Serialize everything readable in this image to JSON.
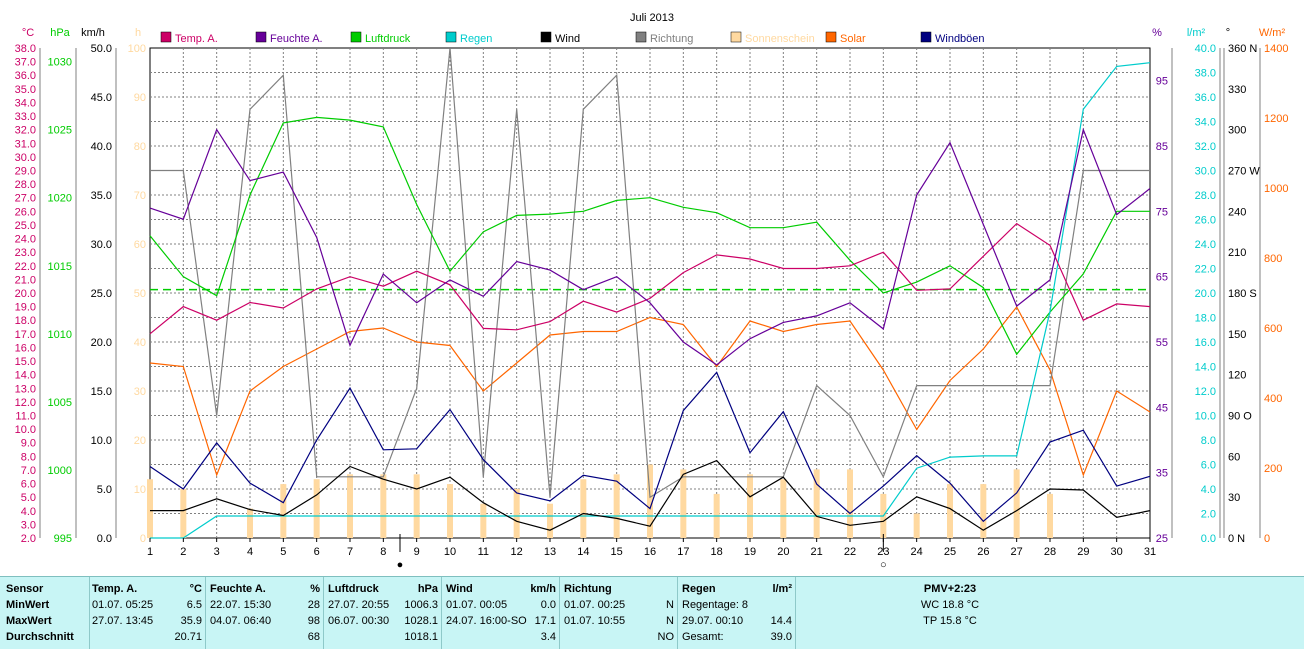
{
  "chart_data": {
    "type": "line",
    "title": "Juli 2013",
    "x": [
      1,
      2,
      3,
      4,
      5,
      6,
      7,
      8,
      9,
      10,
      11,
      12,
      13,
      14,
      15,
      16,
      17,
      18,
      19,
      20,
      21,
      22,
      23,
      24,
      25,
      26,
      27,
      28,
      29,
      30,
      31
    ],
    "x_ticks": [
      "1",
      "2",
      "3",
      "4",
      "5",
      "6",
      "7",
      "8",
      "9",
      "10",
      "11",
      "12",
      "13",
      "14",
      "15",
      "16",
      "17",
      "18",
      "19",
      "20",
      "21",
      "22",
      "23",
      "24",
      "25",
      "26",
      "27",
      "28",
      "29",
      "30",
      "31"
    ],
    "axes": {
      "temp": {
        "unit": "°C",
        "min": 2,
        "max": 38,
        "color": "#cc0066",
        "ticks": [
          "38.0",
          "37.0",
          "36.0",
          "35.0",
          "34.0",
          "33.0",
          "32.0",
          "31.0",
          "30.0",
          "29.0",
          "28.0",
          "27.0",
          "26.0",
          "25.0",
          "24.0",
          "23.0",
          "22.0",
          "21.0",
          "20.0",
          "19.0",
          "18.0",
          "17.0",
          "16.0",
          "15.0",
          "14.0",
          "13.0",
          "12.0",
          "11.0",
          "10.0",
          "9.0",
          "8.0",
          "7.0",
          "6.0",
          "5.0",
          "4.0",
          "3.0",
          "2.0"
        ]
      },
      "pressure": {
        "unit": "hPa",
        "min": 995,
        "max": 1031,
        "color": "#00cc00",
        "ticks": [
          "1030",
          "1025",
          "1020",
          "1015",
          "1010",
          "1005",
          "1000",
          "995"
        ]
      },
      "wind": {
        "unit": "km/h",
        "min": 0,
        "max": 50,
        "color": "#000000",
        "ticks": [
          "50.0",
          "45.0",
          "40.0",
          "35.0",
          "30.0",
          "25.0",
          "20.0",
          "15.0",
          "10.0",
          "5.0",
          "0.0"
        ]
      },
      "sun": {
        "unit": "h",
        "min": 0,
        "max": 100,
        "color": "#ffd9a0",
        "ticks": [
          "100",
          "90",
          "80",
          "70",
          "60",
          "50",
          "40",
          "30",
          "20",
          "10",
          "0"
        ]
      },
      "humidity": {
        "unit": "%",
        "min": 25,
        "max": 100,
        "color": "#660099",
        "ticks": [
          "95",
          "85",
          "75",
          "65",
          "55",
          "45",
          "35",
          "25"
        ]
      },
      "rain": {
        "unit": "l/m²",
        "min": 0,
        "max": 40,
        "color": "#00cccc",
        "ticks": [
          "40.0",
          "38.0",
          "36.0",
          "34.0",
          "32.0",
          "30.0",
          "28.0",
          "26.0",
          "24.0",
          "22.0",
          "20.0",
          "18.0",
          "16.0",
          "14.0",
          "12.0",
          "10.0",
          "8.0",
          "6.0",
          "4.0",
          "2.0",
          "0.0"
        ]
      },
      "direction": {
        "unit": "°",
        "min": 0,
        "max": 360,
        "color": "#000000",
        "ticks": [
          "360 N",
          "330",
          "300",
          "270 W",
          "240",
          "210",
          "180 S",
          "150",
          "120",
          "90 O",
          "60",
          "30",
          "0 N"
        ]
      },
      "solar": {
        "unit": "W/m²",
        "min": 0,
        "max": 1400,
        "color": "#ff6600",
        "ticks": [
          "1400",
          "1200",
          "1000",
          "800",
          "600",
          "400",
          "200",
          "0"
        ]
      }
    },
    "legend": [
      "Temp. A.",
      "Feuchte A.",
      "Luftdruck",
      "Regen",
      "Wind",
      "Richtung",
      "Sonnenschein",
      "Solar",
      "Windböen"
    ],
    "reference_line": {
      "axis": "pressure",
      "value": 1013.25,
      "color": "#00cc00"
    },
    "series": [
      {
        "name": "Temp. A.",
        "axis": "temp",
        "color": "#cc0066",
        "values": [
          17.0,
          19.0,
          18.0,
          19.3,
          18.9,
          20.3,
          21.2,
          20.5,
          21.6,
          20.6,
          17.4,
          17.3,
          17.9,
          19.4,
          18.6,
          19.6,
          21.5,
          22.8,
          22.5,
          21.8,
          21.8,
          22.0,
          23.0,
          20.2,
          20.3,
          22.7,
          25.1,
          23.5,
          18.0,
          19.2,
          19.0
        ]
      },
      {
        "name": "Feuchte A.",
        "axis": "humidity",
        "color": "#660099",
        "values": [
          75.5,
          73.8,
          87.5,
          79.7,
          81.0,
          71.0,
          54.5,
          65.4,
          61.0,
          64.5,
          62.0,
          67.3,
          66.0,
          63.0,
          65.0,
          61.0,
          55.0,
          51.5,
          55.5,
          58.0,
          59.0,
          61.0,
          57.0,
          77.5,
          85.5,
          73.0,
          60.5,
          64.5,
          87.5,
          74.5,
          78.5
        ]
      },
      {
        "name": "Luftdruck",
        "axis": "pressure",
        "color": "#00cc00",
        "values": [
          1017.2,
          1014.2,
          1012.8,
          1020.2,
          1025.5,
          1025.9,
          1025.7,
          1025.2,
          1019.5,
          1014.6,
          1017.5,
          1018.7,
          1018.8,
          1019.0,
          1019.8,
          1020.0,
          1019.3,
          1018.9,
          1017.8,
          1017.8,
          1018.2,
          1015.4,
          1013.0,
          1013.8,
          1015.0,
          1013.4,
          1008.5,
          1011.6,
          1014.4,
          1019.0,
          1019.0
        ]
      },
      {
        "name": "Regen",
        "axis": "rain",
        "color": "#00cccc",
        "values": [
          0.0,
          0.0,
          1.8,
          1.8,
          1.8,
          1.8,
          1.8,
          1.8,
          1.8,
          1.8,
          1.8,
          1.8,
          1.8,
          1.8,
          1.8,
          1.8,
          1.8,
          1.8,
          1.8,
          1.8,
          1.8,
          1.8,
          1.8,
          5.7,
          6.6,
          6.7,
          6.7,
          18.5,
          35.0,
          38.5,
          38.8
        ]
      },
      {
        "name": "Wind",
        "axis": "wind",
        "color": "#000000",
        "values": [
          2.8,
          2.8,
          4.0,
          2.9,
          2.3,
          4.4,
          7.3,
          6.0,
          5.0,
          6.2,
          3.6,
          1.7,
          0.8,
          2.5,
          2.0,
          1.2,
          6.5,
          7.9,
          4.2,
          6.2,
          2.2,
          1.3,
          1.7,
          4.2,
          3.0,
          0.8,
          2.8,
          5.0,
          4.9,
          2.1,
          2.8
        ]
      },
      {
        "name": "Windböen",
        "axis": "wind",
        "color": "#000080",
        "values": [
          7.3,
          5.0,
          9.7,
          5.6,
          3.6,
          10.0,
          15.3,
          9.0,
          9.1,
          13.1,
          8.0,
          4.6,
          3.8,
          6.4,
          5.8,
          3.0,
          13.0,
          16.9,
          8.7,
          12.9,
          5.5,
          2.5,
          5.3,
          8.4,
          5.6,
          1.7,
          4.6,
          9.8,
          11.0,
          5.3,
          6.3
        ]
      },
      {
        "name": "Richtung",
        "axis": "direction",
        "color": "#808080",
        "values": [
          270,
          270,
          90,
          315,
          340,
          45,
          45,
          45,
          110,
          360,
          45,
          315,
          30,
          315,
          340,
          30,
          45,
          45,
          45,
          45,
          112,
          90,
          45,
          112,
          112,
          112,
          112,
          112,
          270,
          270,
          270
        ]
      },
      {
        "name": "Sonnenschein",
        "axis": "sun",
        "type": "bar",
        "color": "#ffd9a0",
        "values": [
          12,
          10,
          0,
          6,
          11,
          12,
          13,
          13,
          13,
          11,
          7,
          10,
          7,
          12,
          13,
          15,
          14,
          9,
          13,
          12,
          14,
          14,
          9,
          5,
          11,
          11,
          14,
          9,
          0,
          0,
          0
        ]
      },
      {
        "name": "Solar",
        "axis": "solar",
        "color": "#ff6600",
        "values": [
          500,
          490,
          180,
          420,
          490,
          540,
          590,
          600,
          560,
          550,
          420,
          500,
          580,
          590,
          590,
          630,
          610,
          490,
          620,
          590,
          610,
          620,
          480,
          310,
          450,
          540,
          660,
          480,
          180,
          420,
          360
        ]
      }
    ],
    "markers": [
      {
        "day": 8.5,
        "symbol": "●"
      },
      {
        "day": 23,
        "symbol": "○"
      }
    ]
  },
  "stats": {
    "cols": [
      {
        "title": "Sensor",
        "unit": "",
        "rows": [
          "MinWert",
          "MaxWert",
          "Durchschnitt"
        ],
        "vals": [
          "",
          "",
          ""
        ]
      },
      {
        "title": "Temp. A.",
        "unit": "°C",
        "rows": [
          "01.07.  05:25",
          "27.07.  13:45",
          ""
        ],
        "vals": [
          "6.5",
          "35.9",
          "20.71"
        ]
      },
      {
        "title": "Feuchte A.",
        "unit": "%",
        "rows": [
          "22.07.  15:30",
          "04.07.  06:40",
          ""
        ],
        "vals": [
          "28",
          "98",
          "68"
        ]
      },
      {
        "title": "Luftdruck",
        "unit": "hPa",
        "rows": [
          "27.07.  20:55",
          "06.07.  00:30",
          ""
        ],
        "vals": [
          "1006.3",
          "1028.1",
          "1018.1"
        ]
      },
      {
        "title": "Wind",
        "unit": "km/h",
        "rows": [
          "01.07.  00:05",
          "24.07.  16:00-SO",
          ""
        ],
        "vals": [
          "0.0",
          "17.1",
          "3.4"
        ]
      },
      {
        "title": "Richtung",
        "unit": "",
        "rows": [
          "01.07.  00:25",
          "01.07.  10:55",
          ""
        ],
        "vals": [
          "N",
          "N",
          "NO"
        ]
      },
      {
        "title": "Regen",
        "unit": "l/m²",
        "rows": [
          "Regentage: 8",
          "29.07.  00:10",
          "Gesamt:"
        ],
        "vals": [
          "",
          "14.4",
          "39.0"
        ]
      }
    ],
    "pmv": {
      "title": "PMV+2:23",
      "wc": "WC 18.8 °C",
      "tp": "TP 15.8 °C"
    }
  }
}
